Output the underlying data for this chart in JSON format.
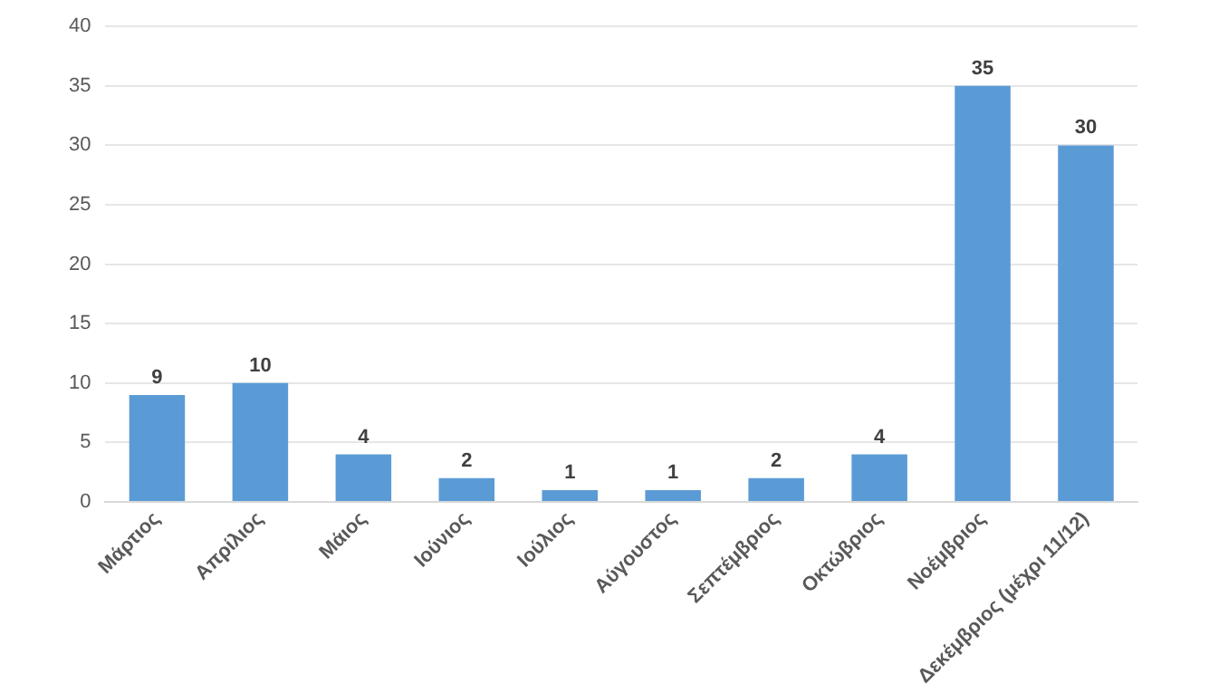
{
  "chart_data": {
    "type": "bar",
    "categories": [
      "Μάρτιος",
      "Απρίλιος",
      "Μάιος",
      "Ιούνιος",
      "Ιούλιος",
      "Αύγουστος",
      "Σεπτέμβριος",
      "Οκτώβριος",
      "Νοέμβριος",
      "Δεκέμβριος (μέχρι 11/12)"
    ],
    "values": [
      9,
      10,
      4,
      2,
      1,
      1,
      2,
      4,
      35,
      30
    ],
    "color": "#5b9bd5",
    "ylim": [
      0,
      40
    ],
    "yticks": [
      0,
      5,
      10,
      15,
      20,
      25,
      30,
      35,
      40
    ],
    "grid": "y",
    "legend": false,
    "data_labels": true
  }
}
